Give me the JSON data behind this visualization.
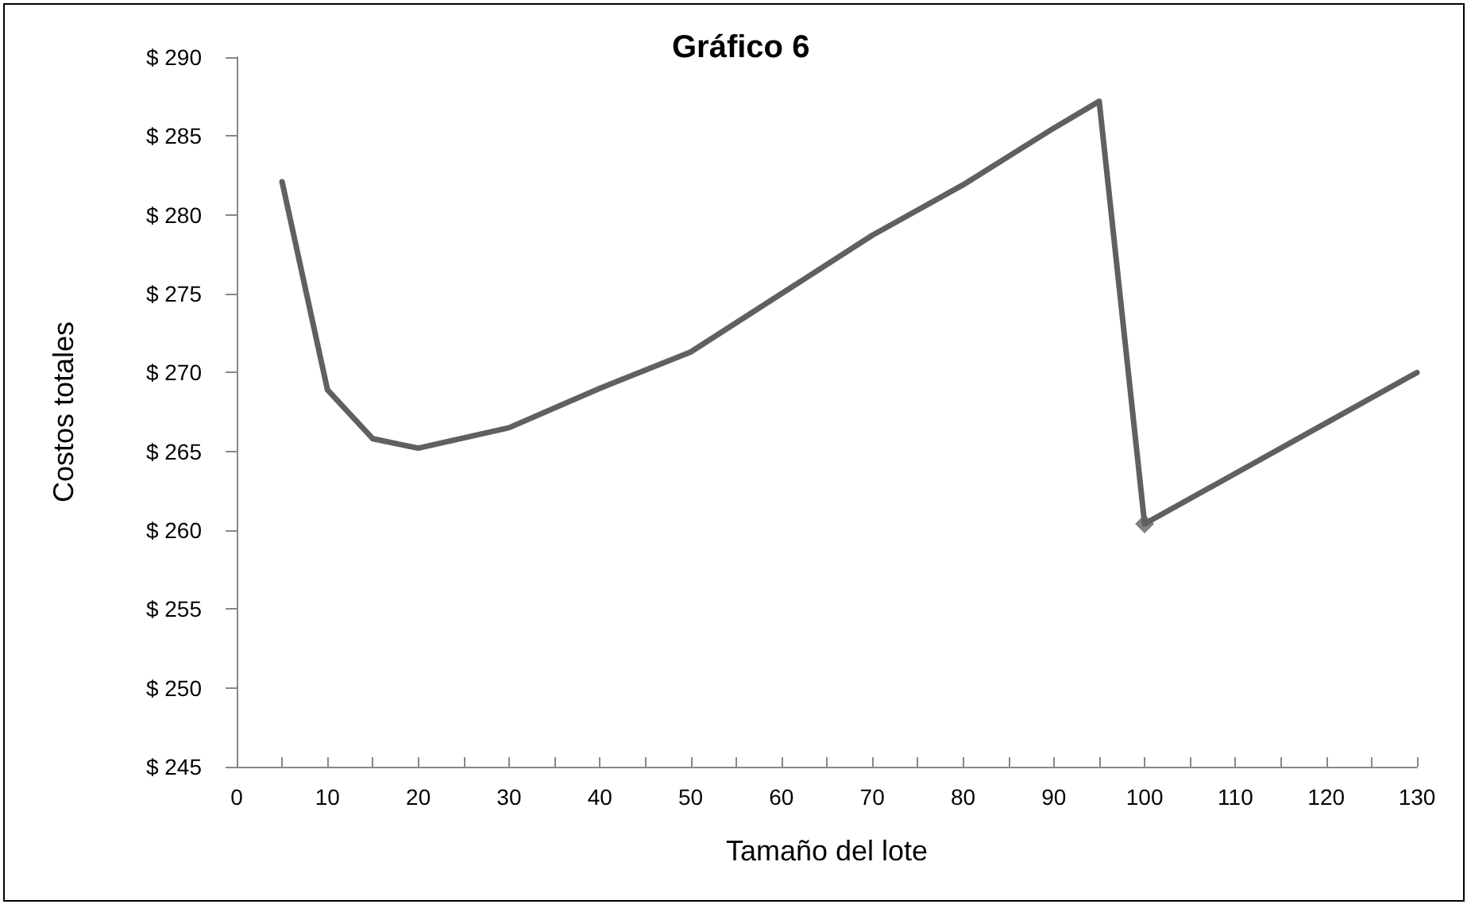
{
  "chart_data": {
    "type": "line",
    "title": "Gráfico 6",
    "xlabel": "Tamaño del lote",
    "ylabel": "Costos totales",
    "x": [
      5,
      10,
      15,
      20,
      30,
      40,
      50,
      60,
      70,
      80,
      90,
      95,
      100,
      110,
      120,
      130
    ],
    "series": [
      {
        "color": "#606060",
        "values": [
          282.1,
          268.9,
          265.8,
          265.2,
          266.5,
          269.0,
          271.3,
          275.0,
          278.7,
          281.9,
          285.5,
          287.2,
          260.4,
          263.6,
          266.8,
          270.0
        ]
      },
      {
        "type": "scatter",
        "color": "#606060",
        "marker": "diamond",
        "x": [
          100
        ],
        "values": [
          260.4
        ]
      }
    ],
    "xlim": [
      0,
      130
    ],
    "xticks": [
      0,
      {
        "value": 5,
        "label": null
      },
      10,
      {
        "value": 15,
        "label": null
      },
      20,
      {
        "value": 25,
        "label": null
      },
      30,
      {
        "value": 35,
        "label": null
      },
      40,
      {
        "value": 45,
        "label": null
      },
      50,
      {
        "value": 55,
        "label": null
      },
      60,
      {
        "value": 65,
        "label": null
      },
      70,
      {
        "value": 75,
        "label": null
      },
      80,
      {
        "value": 85,
        "label": null
      },
      90,
      {
        "value": 95,
        "label": null
      },
      100,
      {
        "value": 105,
        "label": null
      },
      110,
      {
        "value": 115,
        "label": null
      },
      120,
      {
        "value": 125,
        "label": null
      },
      130
    ],
    "ylim": [
      245,
      290
    ],
    "yticks": [
      {
        "value": 245,
        "label": "$ 245"
      },
      {
        "value": 250,
        "label": "$ 250"
      },
      {
        "value": 255,
        "label": "$ 255"
      },
      {
        "value": 260,
        "label": "$ 260"
      },
      {
        "value": 265,
        "label": "$ 265"
      },
      {
        "value": 270,
        "label": "$ 270"
      },
      {
        "value": 275,
        "label": "$ 275"
      },
      {
        "value": 280,
        "label": "$ 280"
      },
      {
        "value": 285,
        "label": "$ 285"
      },
      {
        "value": 290,
        "label": "$ 290"
      }
    ],
    "grid": false,
    "marker": "none",
    "line_style": "solid"
  }
}
